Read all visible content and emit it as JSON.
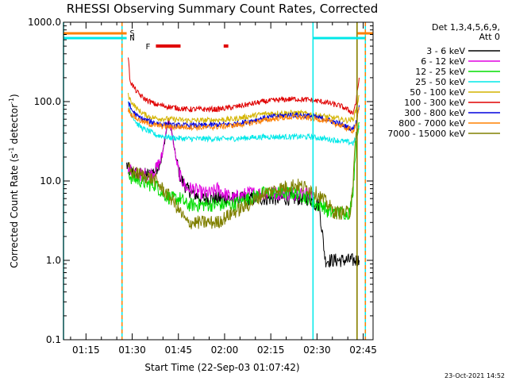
{
  "chart_data": {
    "type": "line",
    "title": "RHESSI Observing Summary Count Rates, Corrected",
    "xlabel": "Start Time (22-Sep-03 01:07:42)",
    "ylabel_pre": "Corrected Count Rate (s",
    "ylabel_sup1": "-1",
    "ylabel_mid": " detector",
    "ylabel_sup2": "-1",
    "ylabel_post": ")",
    "yscale": "log",
    "ylim": [
      0.1,
      1000
    ],
    "xlim_minutes": [
      0,
      100.5
    ],
    "yticks": [
      {
        "value": 1000,
        "label": "1000.0"
      },
      {
        "value": 100,
        "label": "100.0"
      },
      {
        "value": 10,
        "label": "10.0"
      },
      {
        "value": 1,
        "label": "1.0"
      },
      {
        "value": 0.1,
        "label": "0.1"
      }
    ],
    "xticks": [
      {
        "minutes": 7.3,
        "label": "01:15"
      },
      {
        "minutes": 22.3,
        "label": "01:30"
      },
      {
        "minutes": 37.3,
        "label": "01:45"
      },
      {
        "minutes": 52.3,
        "label": "02:00"
      },
      {
        "minutes": 67.3,
        "label": "02:15"
      },
      {
        "minutes": 82.3,
        "label": "02:30"
      },
      {
        "minutes": 97.3,
        "label": "02:45"
      }
    ],
    "legend_header1": "Det 1,3,4,5,6,9,",
    "legend_header2": "Att 0",
    "series": [
      {
        "name": "3 - 6 keV",
        "color": "#000000",
        "x": [
          20.5,
          21,
          22,
          25,
          28,
          30,
          32,
          33,
          34,
          35,
          36,
          37,
          38,
          40,
          42,
          45,
          50,
          55,
          60,
          65,
          70,
          75,
          80,
          82,
          83,
          85,
          88,
          90,
          92,
          94,
          95.5,
          96
        ],
        "y": [
          16,
          14,
          13,
          12,
          12,
          14,
          20,
          35,
          57,
          45,
          25,
          16,
          11,
          8,
          7,
          6,
          6,
          6,
          6,
          6,
          6,
          6,
          6,
          5,
          5,
          1,
          1,
          1,
          1,
          1,
          1,
          1
        ]
      },
      {
        "name": "6 - 12 keV",
        "color": "#e000e0",
        "x": [
          21,
          22,
          25,
          28,
          30,
          32,
          33,
          34,
          35,
          36,
          37,
          38,
          40,
          42,
          45,
          48,
          50,
          52,
          55,
          60,
          65,
          70,
          75,
          80,
          81
        ],
        "y": [
          15,
          13,
          12,
          12,
          14,
          20,
          38,
          60,
          45,
          25,
          15,
          11,
          8,
          8,
          7,
          7,
          8,
          7,
          6,
          7,
          7,
          7,
          7,
          7,
          6
        ]
      },
      {
        "name": "12 - 25 keV",
        "color": "#00dd00",
        "x": [
          21,
          22,
          25,
          28,
          30,
          32,
          35,
          38,
          40,
          45,
          50,
          55,
          60,
          65,
          70,
          75,
          80,
          82,
          84,
          86,
          88,
          90,
          92,
          93,
          94,
          95,
          96
        ],
        "y": [
          13,
          11,
          10,
          9,
          9,
          7,
          6,
          6,
          5,
          5,
          5,
          5,
          6,
          7,
          7,
          7,
          6,
          5,
          5,
          4,
          4,
          4,
          4,
          4,
          8,
          30,
          55
        ]
      },
      {
        "name": "25 - 50 keV",
        "color": "#00e8e8",
        "x": [
          21,
          22,
          24,
          26,
          28,
          30,
          35,
          40,
          45,
          50,
          55,
          60,
          65,
          70,
          75,
          80,
          85,
          90,
          92,
          94,
          95,
          96
        ],
        "y": [
          95,
          70,
          52,
          45,
          42,
          38,
          35,
          34,
          34,
          34,
          34,
          35,
          36,
          36,
          36,
          36,
          34,
          32,
          31,
          30,
          34,
          50
        ]
      },
      {
        "name": "50 - 100 keV",
        "color": "#d4b400",
        "x": [
          21,
          22,
          24,
          26,
          28,
          30,
          35,
          40,
          45,
          50,
          55,
          60,
          65,
          70,
          75,
          80,
          85,
          90,
          92,
          94,
          95,
          96
        ],
        "y": [
          120,
          100,
          80,
          70,
          64,
          62,
          60,
          58,
          58,
          59,
          60,
          65,
          70,
          72,
          72,
          70,
          65,
          60,
          58,
          60,
          80,
          120
        ]
      },
      {
        "name": "100 - 300 keV",
        "color": "#e00000",
        "x": [
          21,
          21.5,
          22,
          24,
          26,
          28,
          30,
          35,
          40,
          45,
          50,
          55,
          60,
          65,
          70,
          75,
          80,
          85,
          90,
          92,
          94,
          95,
          96
        ],
        "y": [
          380,
          200,
          170,
          130,
          110,
          100,
          92,
          85,
          80,
          80,
          80,
          85,
          92,
          100,
          105,
          108,
          105,
          98,
          88,
          80,
          72,
          100,
          200
        ]
      },
      {
        "name": "300 - 800 keV",
        "color": "#0000dd",
        "x": [
          21,
          22,
          24,
          26,
          28,
          30,
          35,
          40,
          45,
          50,
          55,
          60,
          65,
          70,
          75,
          80,
          85,
          90,
          92,
          94,
          95,
          96
        ],
        "y": [
          100,
          80,
          65,
          60,
          56,
          54,
          50,
          50,
          50,
          51,
          52,
          56,
          62,
          66,
          68,
          66,
          60,
          52,
          48,
          45,
          55,
          90
        ]
      },
      {
        "name": "800 - 7000 keV",
        "color": "#ff8000",
        "x": [
          21,
          22,
          24,
          26,
          28,
          30,
          35,
          40,
          45,
          50,
          55,
          60,
          65,
          70,
          75,
          80,
          85,
          90,
          92,
          94,
          95,
          96
        ],
        "y": [
          80,
          70,
          60,
          55,
          52,
          50,
          48,
          48,
          47,
          48,
          50,
          53,
          58,
          62,
          64,
          62,
          58,
          50,
          46,
          43,
          52,
          85
        ]
      },
      {
        "name": "7000 - 15000 keV",
        "color": "#808000",
        "x": [
          21,
          22,
          25,
          28,
          30,
          32,
          35,
          38,
          40,
          45,
          50,
          55,
          60,
          65,
          70,
          75,
          80,
          82,
          84,
          86,
          88,
          90,
          92,
          93,
          94,
          95,
          96
        ],
        "y": [
          15,
          13,
          12,
          11,
          10,
          8,
          6,
          4,
          3,
          3,
          3,
          4,
          5,
          7,
          8,
          9,
          8,
          7,
          6,
          5,
          4,
          4,
          4,
          4,
          10,
          40,
          45
        ]
      }
    ],
    "attenuator_bars": [
      {
        "label": "S",
        "color": "#ff8000",
        "segments": [
          [
            0,
            20.5
          ],
          [
            95.5,
            100.5
          ]
        ]
      },
      {
        "label": "N",
        "color": "#00e8e8",
        "segments": [
          [
            0,
            20.5
          ],
          [
            81,
            98
          ]
        ]
      }
    ],
    "flare_flag": {
      "label": "F",
      "color": "#e00000",
      "segments": [
        [
          30,
          38
        ],
        [
          52,
          53.5
        ]
      ]
    },
    "vertical_markers": [
      {
        "minutes": 0,
        "color": "#00e8e8",
        "style": "solid"
      },
      {
        "minutes": 19,
        "color": "#00e8e8",
        "style": "solid"
      },
      {
        "minutes": 19,
        "color": "#ff8000",
        "style": "dashed"
      },
      {
        "minutes": 81,
        "color": "#00e8e8",
        "style": "solid"
      },
      {
        "minutes": 95.3,
        "color": "#ff8000",
        "style": "solid"
      },
      {
        "minutes": 95.3,
        "color": "#808000",
        "style": "solid"
      },
      {
        "minutes": 98,
        "color": "#00e8e8",
        "style": "solid"
      },
      {
        "minutes": 98,
        "color": "#ff8000",
        "style": "dashed"
      }
    ],
    "timestamp": "23-Oct-2021 14:52"
  }
}
